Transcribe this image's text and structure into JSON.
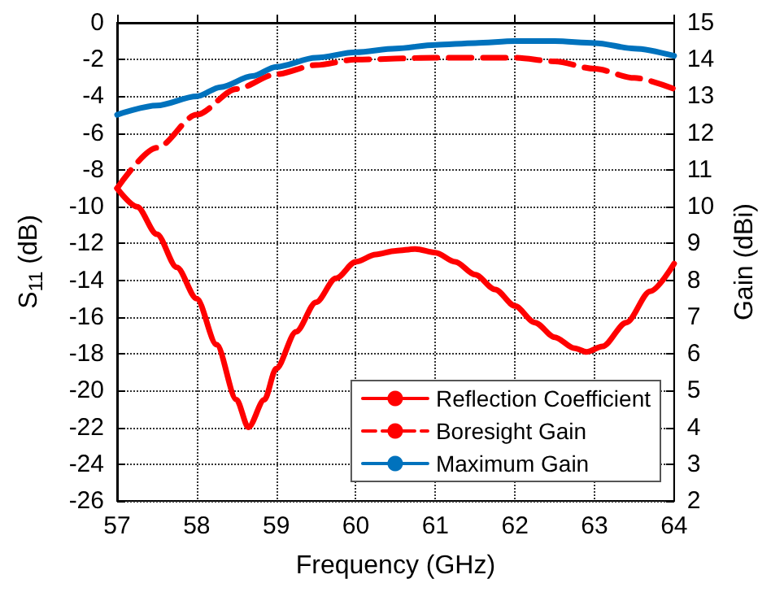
{
  "chart_data": {
    "type": "line",
    "xlabel": "Frequency (GHz)",
    "ylabel": "S$_{11}$ (dB)",
    "y2label": "Gain (dBi)",
    "xlim": [
      57,
      64
    ],
    "xticks": [
      57,
      58,
      59,
      60,
      61,
      62,
      63,
      64
    ],
    "ylim": [
      -26,
      0
    ],
    "yticks": [
      -26,
      -24,
      -22,
      -20,
      -18,
      -16,
      -14,
      -12,
      -10,
      -8,
      -6,
      -4,
      -2,
      0
    ],
    "y2lim": [
      2,
      15
    ],
    "y2ticks": [
      2,
      3,
      4,
      5,
      6,
      7,
      8,
      9,
      10,
      11,
      12,
      13,
      14,
      15
    ],
    "grid": true,
    "legend": "bottom right",
    "marker": "none",
    "series": [
      {
        "name": "Reflection Coefficient",
        "color": "#ff0000",
        "line_style": "solid",
        "x": [
          57,
          57.25,
          57.5,
          57.75,
          58,
          58.25,
          58.5,
          58.65,
          58.85,
          59,
          59.25,
          59.5,
          59.75,
          60,
          60.25,
          60.5,
          60.75,
          61,
          61.25,
          61.5,
          61.75,
          62,
          62.25,
          62.5,
          62.75,
          62.9,
          63.1,
          63.4,
          63.7,
          64
        ],
        "values": [
          -9,
          -10,
          -11.5,
          -13.3,
          -15,
          -17.5,
          -20.5,
          -22,
          -20.5,
          -18.8,
          -16.8,
          -15.2,
          -13.9,
          -13,
          -12.6,
          -12.4,
          -12.3,
          -12.5,
          -13,
          -13.7,
          -14.5,
          -15.4,
          -16.3,
          -17.1,
          -17.7,
          -17.9,
          -17.6,
          -16.3,
          -14.6,
          -13.1
        ]
      },
      {
        "name": "Boresight Gain",
        "color": "#ff0000",
        "line_style": "dashed",
        "axis": "y2",
        "x": [
          57,
          57.5,
          58,
          58.5,
          59,
          59.5,
          60,
          61,
          62,
          62.5,
          63,
          63.5,
          64
        ],
        "values": [
          10.5,
          11.6,
          12.5,
          13.2,
          13.6,
          13.85,
          14.0,
          14.05,
          14.05,
          13.95,
          13.75,
          13.5,
          13.2
        ]
      },
      {
        "name": "Maximum Gain",
        "color": "#0072bd",
        "line_style": "solid",
        "axis": "y2",
        "x": [
          57,
          57.5,
          58,
          58.3,
          58.7,
          59,
          59.5,
          60,
          60.5,
          61,
          61.5,
          62,
          62.5,
          63,
          63.5,
          64
        ],
        "values": [
          12.5,
          12.75,
          13.0,
          13.25,
          13.55,
          13.8,
          14.05,
          14.2,
          14.3,
          14.4,
          14.45,
          14.5,
          14.5,
          14.45,
          14.3,
          14.1
        ]
      }
    ]
  }
}
